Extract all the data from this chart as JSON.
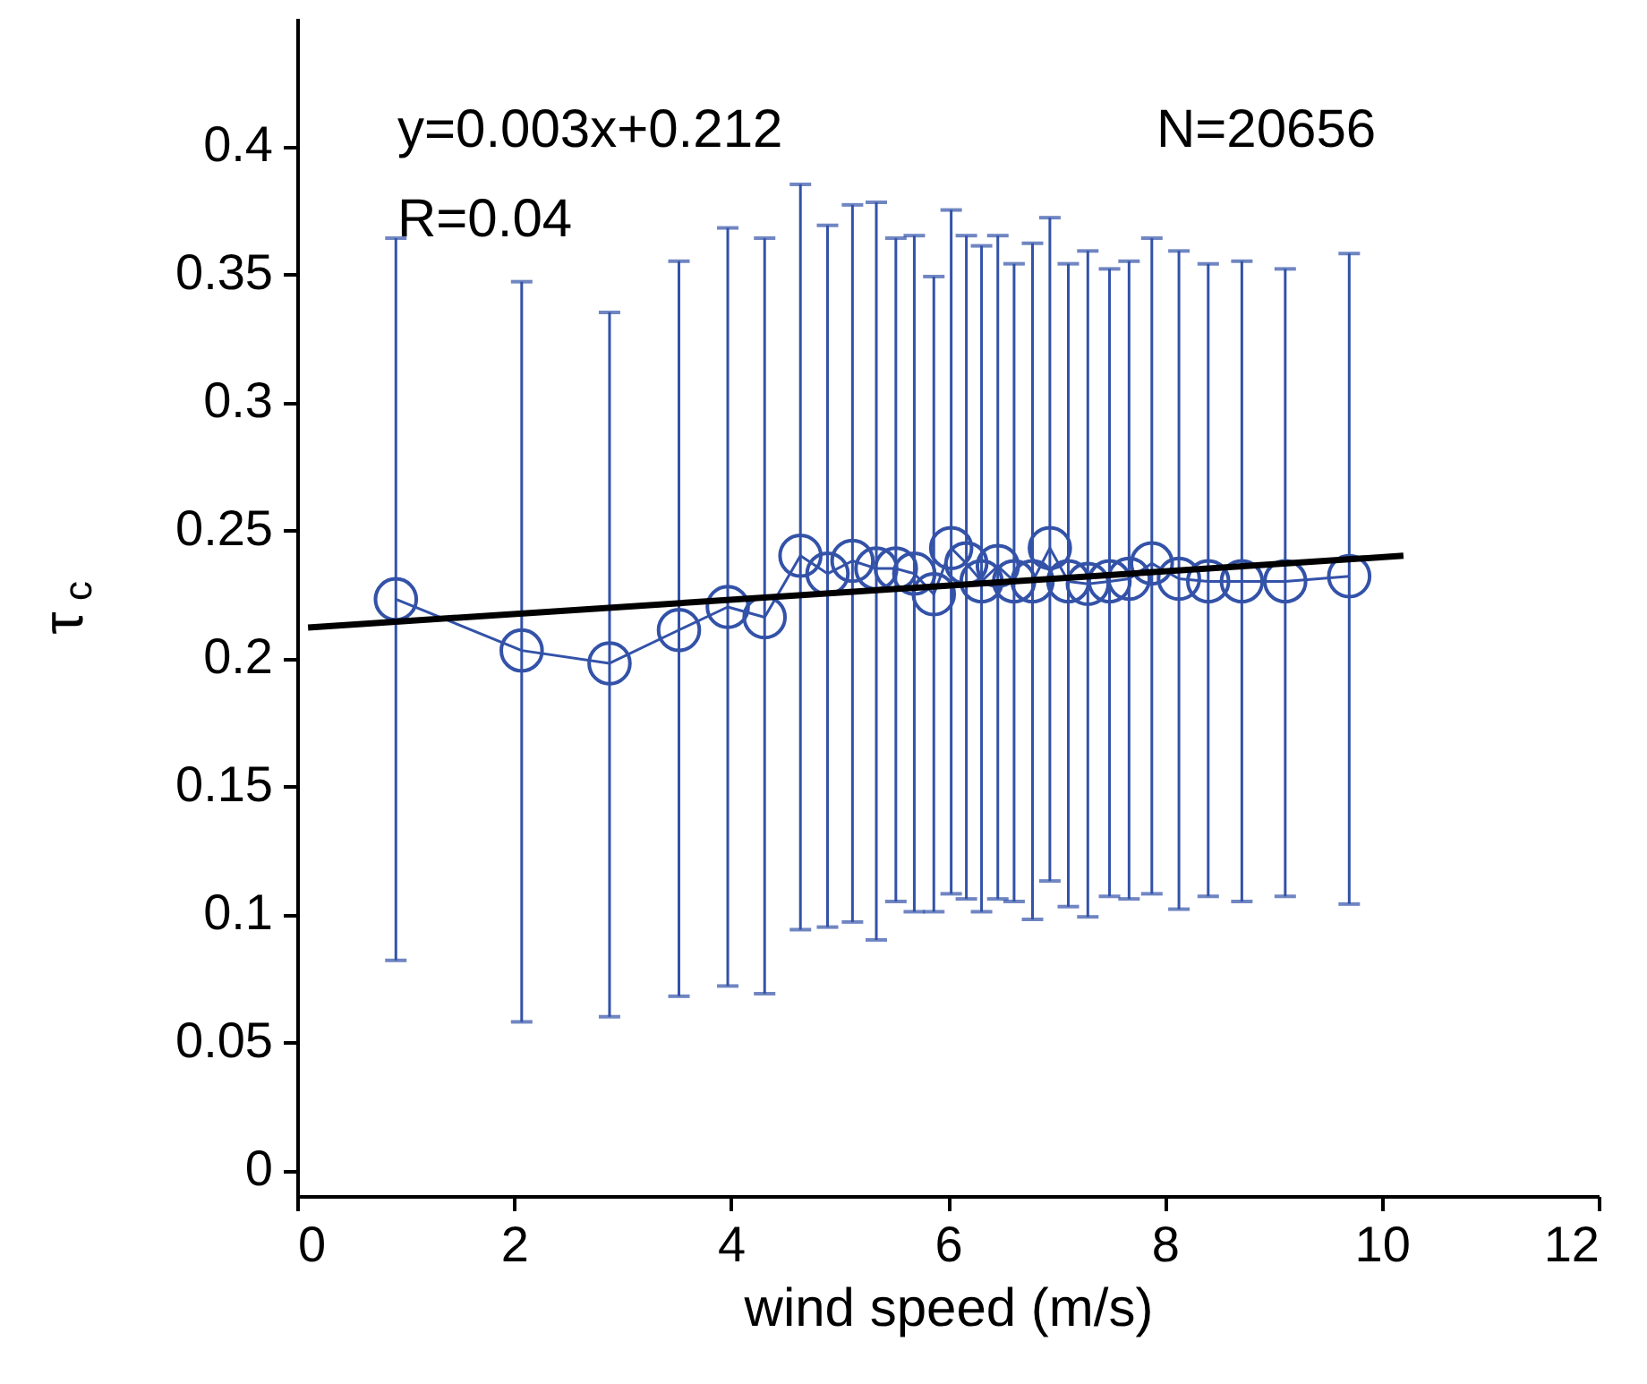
{
  "chart_data": {
    "type": "line",
    "xlabel": "wind speed (m/s)",
    "ylabel": "τ$_{c}$",
    "annotations": [
      "y=0.003x+0.212",
      "R=0.04",
      "N=20656"
    ],
    "xlim": [
      0,
      12
    ],
    "xticks": [
      0,
      2,
      4,
      6,
      8,
      10,
      12
    ],
    "ylim": [
      -0.01,
      0.45
    ],
    "yticks": [
      0,
      0.05,
      0.1,
      0.15,
      0.2,
      0.25,
      0.3,
      0.35,
      0.4
    ],
    "grid": false,
    "series": [
      {
        "marker": "circle",
        "line_style": "solid",
        "color": "#3352a8",
        "x": [
          0.91,
          2.07,
          2.88,
          3.52,
          3.97,
          4.31,
          4.64,
          4.89,
          5.12,
          5.34,
          5.52,
          5.69,
          5.87,
          6.03,
          6.17,
          6.31,
          6.46,
          6.61,
          6.78,
          6.94,
          7.11,
          7.29,
          7.49,
          7.67,
          7.88,
          8.13,
          8.4,
          8.71,
          9.11,
          9.7
        ],
        "values": [
          0.223,
          0.203,
          0.198,
          0.211,
          0.22,
          0.216,
          0.24,
          0.233,
          0.238,
          0.235,
          0.235,
          0.233,
          0.225,
          0.243,
          0.237,
          0.23,
          0.236,
          0.23,
          0.23,
          0.243,
          0.23,
          0.229,
          0.23,
          0.231,
          0.237,
          0.231,
          0.23,
          0.23,
          0.23,
          0.232
        ],
        "errors": [
          [
            0.082,
            0.364
          ],
          [
            0.058,
            0.347
          ],
          [
            0.06,
            0.335
          ],
          [
            0.068,
            0.355
          ],
          [
            0.072,
            0.368
          ],
          [
            0.069,
            0.364
          ],
          [
            0.094,
            0.385
          ],
          [
            0.095,
            0.369
          ],
          [
            0.097,
            0.377
          ],
          [
            0.09,
            0.378
          ],
          [
            0.105,
            0.364
          ],
          [
            0.101,
            0.365
          ],
          [
            0.101,
            0.349
          ],
          [
            0.108,
            0.375
          ],
          [
            0.106,
            0.365
          ],
          [
            0.101,
            0.361
          ],
          [
            0.106,
            0.365
          ],
          [
            0.105,
            0.354
          ],
          [
            0.098,
            0.362
          ],
          [
            0.113,
            0.372
          ],
          [
            0.103,
            0.354
          ],
          [
            0.099,
            0.359
          ],
          [
            0.107,
            0.352
          ],
          [
            0.106,
            0.355
          ],
          [
            0.108,
            0.364
          ],
          [
            0.102,
            0.359
          ],
          [
            0.107,
            0.354
          ],
          [
            0.105,
            0.355
          ],
          [
            0.107,
            0.352
          ],
          [
            0.104,
            0.358
          ]
        ]
      },
      {
        "marker": "none",
        "line_style": "solid",
        "color": "#000000",
        "x": [
          0.1,
          10.2
        ],
        "values": [
          0.212,
          0.24
        ]
      }
    ]
  }
}
